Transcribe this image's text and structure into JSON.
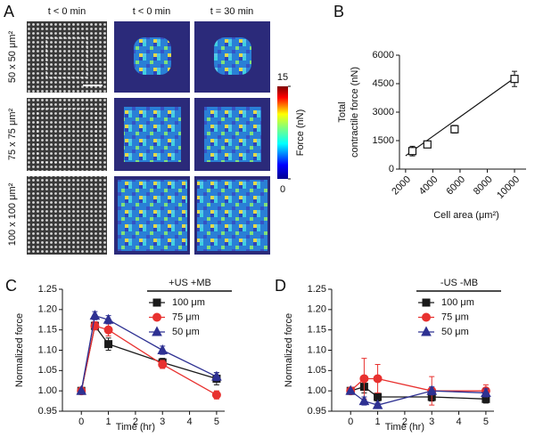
{
  "image_panel": {
    "panel_label": "A",
    "column_titles": [
      "t < 0 min",
      "t < 0 min",
      "t = 30 min"
    ],
    "row_titles": [
      "50 x 50 μm²",
      "75 x 75 μm²",
      "100 x 100 μm²"
    ],
    "colorbar": {
      "title": "Force (nN)",
      "lim": [
        0,
        15
      ],
      "ticks": [
        0,
        15
      ]
    }
  },
  "chart_data": [
    {
      "type": "scatter",
      "panel_label": "B",
      "xlabel": "Cell area (μm²)",
      "ylabel": [
        "Total",
        "contractile force (nN)"
      ],
      "x": [
        2500,
        3600,
        5600,
        10000
      ],
      "values": [
        950,
        1300,
        2100,
        4750
      ],
      "errors": [
        250,
        150,
        200,
        400
      ],
      "color": "#111111",
      "marker": "open-square",
      "fit": {
        "x": [
          2000,
          10000
        ],
        "values": [
          700,
          4800
        ]
      },
      "xlim": [
        1550,
        10850
      ],
      "xticks": [
        2000,
        4000,
        6000,
        8000,
        10000
      ],
      "ylim": [
        0,
        6000
      ],
      "yticks": [
        0,
        1500,
        3000,
        4500,
        6000
      ]
    },
    {
      "type": "line",
      "panel_label": "C",
      "legend_title": "+US +MB",
      "xlabel": "Time (hr)",
      "ylabel": "Normalized force",
      "x": [
        0,
        0.5,
        1,
        3,
        5
      ],
      "xlim": [
        -0.7,
        5.3
      ],
      "xticks": [
        0,
        1,
        2,
        3,
        4,
        5
      ],
      "ylim": [
        0.95,
        1.25
      ],
      "yticks": [
        0.95,
        {
          "value": 1,
          "label": "1.00"
        },
        1.05,
        {
          "value": 1.1,
          "label": "1.10"
        },
        1.15,
        {
          "value": 1.2,
          "label": "1.20"
        },
        1.25
      ],
      "series": [
        {
          "name": "100 μm",
          "color": "#1a1a1a",
          "marker": "square",
          "values": [
            1.0,
            1.16,
            1.115,
            1.07,
            1.03
          ],
          "errors": [
            0,
            0.01,
            0.015,
            0.01,
            0.015
          ]
        },
        {
          "name": "75 μm",
          "color": "#e8312f",
          "marker": "circle",
          "values": [
            1.0,
            1.16,
            1.15,
            1.065,
            0.99
          ],
          "errors": [
            0,
            0.01,
            0.015,
            0.01,
            0.01
          ]
        },
        {
          "name": "50 μm",
          "color": "#2e3192",
          "marker": "triangle",
          "values": [
            1.0,
            1.185,
            1.175,
            1.1,
            1.035
          ],
          "errors": [
            0,
            0.01,
            0.01,
            0.01,
            0.01
          ]
        }
      ]
    },
    {
      "type": "line",
      "panel_label": "D",
      "legend_title": "-US -MB",
      "xlabel": "Time (hr)",
      "ylabel": "Normalized force",
      "x": [
        0,
        0.5,
        1,
        3,
        5
      ],
      "xlim": [
        -0.7,
        5.3
      ],
      "xticks": [
        0,
        1,
        2,
        3,
        4,
        5
      ],
      "ylim": [
        0.95,
        1.25
      ],
      "yticks": [
        0.95,
        {
          "value": 1,
          "label": "1.00"
        },
        1.05,
        {
          "value": 1.1,
          "label": "1.10"
        },
        1.15,
        {
          "value": 1.2,
          "label": "1.20"
        },
        1.25
      ],
      "series": [
        {
          "name": "100 μm",
          "color": "#1a1a1a",
          "marker": "square",
          "values": [
            1.0,
            1.01,
            0.985,
            0.985,
            0.98
          ],
          "errors": [
            0,
            0.015,
            0.01,
            0.01,
            0.01
          ]
        },
        {
          "name": "75 μm",
          "color": "#e8312f",
          "marker": "circle",
          "values": [
            1.0,
            1.03,
            1.03,
            1.0,
            1.0
          ],
          "errors": [
            0,
            0.05,
            0.035,
            0.035,
            0.015
          ]
        },
        {
          "name": "50 μm",
          "color": "#2e3192",
          "marker": "triangle",
          "values": [
            1.0,
            0.975,
            0.965,
            1.0,
            0.995
          ],
          "errors": [
            0,
            0.01,
            0.005,
            0.01,
            0.01
          ]
        }
      ]
    }
  ]
}
